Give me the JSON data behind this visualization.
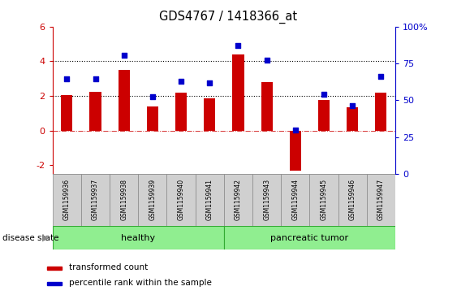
{
  "title": "GDS4767 / 1418366_at",
  "categories": [
    "GSM1159936",
    "GSM1159937",
    "GSM1159938",
    "GSM1159939",
    "GSM1159940",
    "GSM1159941",
    "GSM1159942",
    "GSM1159943",
    "GSM1159944",
    "GSM1159945",
    "GSM1159946",
    "GSM1159947"
  ],
  "red_values": [
    2.05,
    2.25,
    3.5,
    1.4,
    2.2,
    1.85,
    4.4,
    2.8,
    -2.3,
    1.75,
    1.35,
    2.2
  ],
  "blue_values": [
    3.0,
    3.0,
    4.35,
    1.95,
    2.85,
    2.75,
    4.9,
    4.05,
    0.05,
    2.1,
    1.45,
    3.15
  ],
  "red_ylim": [
    -2.5,
    6.0
  ],
  "blue_ylim": [
    0,
    100
  ],
  "red_yticks": [
    -2,
    0,
    2,
    4,
    6
  ],
  "blue_yticks": [
    0,
    25,
    50,
    75,
    100
  ],
  "blue_ytick_labels": [
    "0",
    "25",
    "50",
    "75",
    "100%"
  ],
  "dotted_lines_red": [
    2.0,
    4.0
  ],
  "dash_line_red": 0.0,
  "healthy_count": 6,
  "tumor_count": 6,
  "healthy_color": "#90EE90",
  "tumor_color": "#90EE90",
  "bar_color": "#CC0000",
  "dot_color": "#0000CC",
  "healthy_label": "healthy",
  "tumor_label": "pancreatic tumor",
  "disease_state_label": "disease state",
  "legend_red": "transformed count",
  "legend_blue": "percentile rank within the sample",
  "red_axis_color": "#CC0000",
  "blue_axis_color": "#0000CC",
  "box_facecolor": "#d0d0d0",
  "box_edgecolor": "#888888",
  "green_edgecolor": "#33aa33"
}
